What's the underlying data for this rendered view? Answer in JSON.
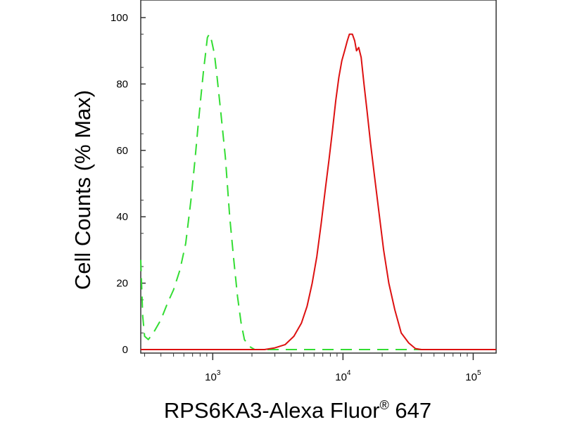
{
  "chart_data": {
    "type": "line",
    "xlabel_main": "RPS6KA3-Alexa Fluor",
    "xlabel_sup": "®",
    "xlabel_tail": " 647",
    "ylabel": "Cell Counts (% Max)",
    "xscale": "log",
    "xlim": [
      280,
      150000
    ],
    "ylim": [
      0,
      100
    ],
    "yticks": [
      0,
      20,
      40,
      60,
      80,
      100
    ],
    "xticks": [
      {
        "value": 1000,
        "base": "10",
        "exp": "3"
      },
      {
        "value": 10000,
        "base": "10",
        "exp": "4"
      },
      {
        "value": 100000,
        "base": "10",
        "exp": "5"
      }
    ],
    "grid": false,
    "series": [
      {
        "color": "#33dd33",
        "style": "dashed",
        "points": [
          [
            280,
            27
          ],
          [
            290,
            10
          ],
          [
            300,
            4
          ],
          [
            320,
            3
          ],
          [
            350,
            5
          ],
          [
            400,
            9
          ],
          [
            450,
            14
          ],
          [
            500,
            18
          ],
          [
            560,
            24
          ],
          [
            620,
            32
          ],
          [
            680,
            45
          ],
          [
            730,
            57
          ],
          [
            770,
            67
          ],
          [
            810,
            76
          ],
          [
            850,
            84
          ],
          [
            880,
            89
          ],
          [
            910,
            94
          ],
          [
            940,
            95
          ],
          [
            980,
            93
          ],
          [
            1030,
            89
          ],
          [
            1080,
            82
          ],
          [
            1150,
            72
          ],
          [
            1250,
            58
          ],
          [
            1350,
            40
          ],
          [
            1450,
            27
          ],
          [
            1550,
            16
          ],
          [
            1650,
            8
          ],
          [
            1750,
            3
          ],
          [
            1900,
            1
          ],
          [
            2100,
            0
          ],
          [
            150000,
            0
          ]
        ]
      },
      {
        "color": "#dd1111",
        "style": "solid",
        "points": [
          [
            280,
            0
          ],
          [
            2500,
            0
          ],
          [
            3000,
            0.5
          ],
          [
            3600,
            1.5
          ],
          [
            4200,
            4
          ],
          [
            4800,
            8
          ],
          [
            5300,
            13
          ],
          [
            5800,
            20
          ],
          [
            6300,
            28
          ],
          [
            6800,
            38
          ],
          [
            7300,
            48
          ],
          [
            7800,
            57
          ],
          [
            8300,
            66
          ],
          [
            8800,
            75
          ],
          [
            9300,
            82
          ],
          [
            9800,
            87
          ],
          [
            10300,
            90
          ],
          [
            10800,
            93
          ],
          [
            11200,
            95
          ],
          [
            11800,
            95
          ],
          [
            12300,
            93
          ],
          [
            12700,
            90
          ],
          [
            13200,
            91
          ],
          [
            13800,
            88
          ],
          [
            14500,
            80
          ],
          [
            15300,
            72
          ],
          [
            16300,
            62
          ],
          [
            17500,
            52
          ],
          [
            18800,
            42
          ],
          [
            20500,
            30
          ],
          [
            22500,
            20
          ],
          [
            25000,
            12
          ],
          [
            28000,
            5
          ],
          [
            32000,
            2
          ],
          [
            36000,
            0.3
          ],
          [
            40000,
            0
          ],
          [
            150000,
            0
          ]
        ]
      }
    ]
  }
}
